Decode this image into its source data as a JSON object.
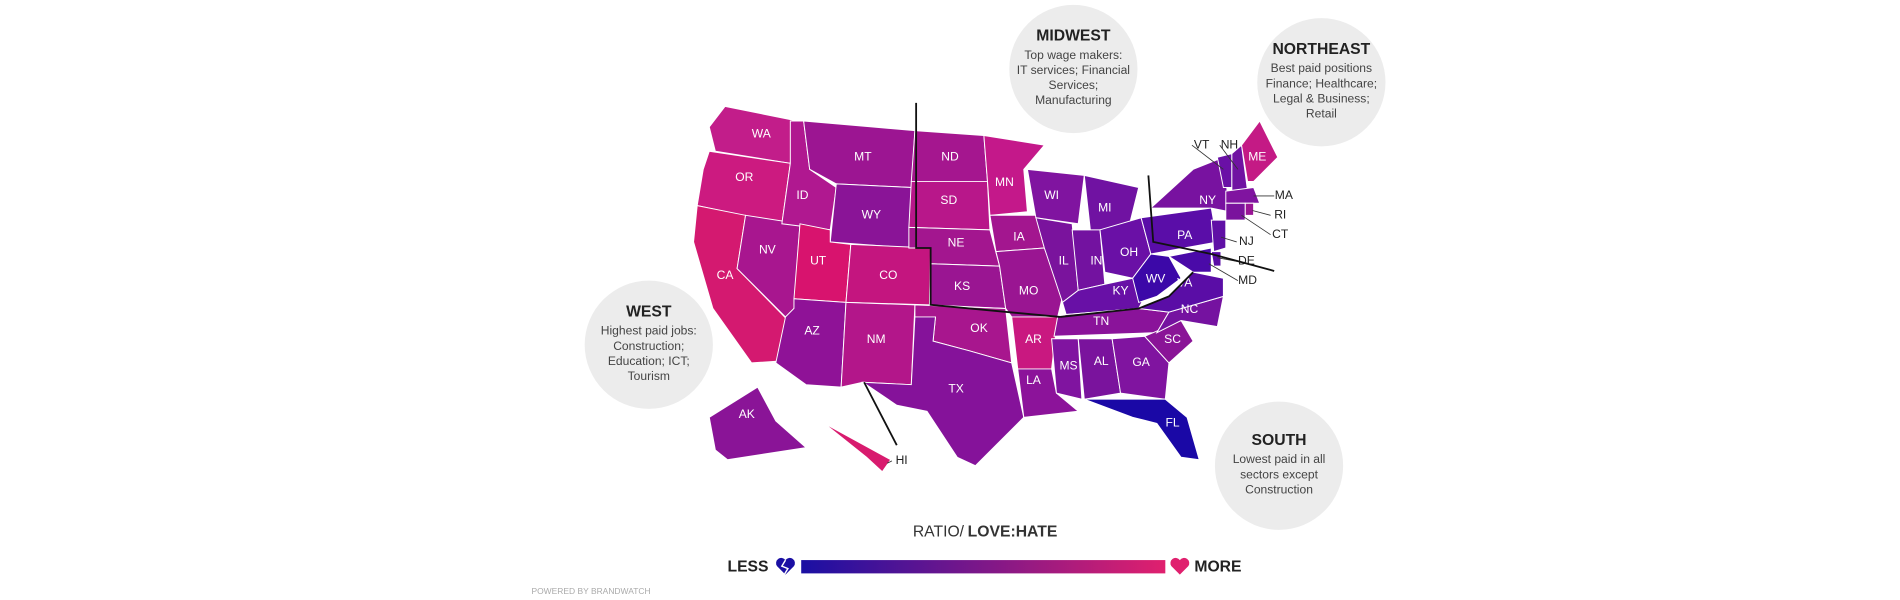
{
  "map": {
    "states": [
      {
        "label": "WA",
        "color": "#c21d8a"
      },
      {
        "label": "OR",
        "color": "#cc1a80"
      },
      {
        "label": "CA",
        "color": "#d41970"
      },
      {
        "label": "NV",
        "color": "#a8168f"
      },
      {
        "label": "ID",
        "color": "#b01890"
      },
      {
        "label": "MT",
        "color": "#9c1592"
      },
      {
        "label": "WY",
        "color": "#8a1497"
      },
      {
        "label": "UT",
        "color": "#d8136e"
      },
      {
        "label": "CO",
        "color": "#c4157f"
      },
      {
        "label": "AZ",
        "color": "#8f1297"
      },
      {
        "label": "NM",
        "color": "#b3168a"
      },
      {
        "label": "ND",
        "color": "#a5168f"
      },
      {
        "label": "SD",
        "color": "#b8178a"
      },
      {
        "label": "NE",
        "color": "#a3168f"
      },
      {
        "label": "KS",
        "color": "#9a1592"
      },
      {
        "label": "OK",
        "color": "#a8168e"
      },
      {
        "label": "TX",
        "color": "#85129a"
      },
      {
        "label": "MN",
        "color": "#c4188a"
      },
      {
        "label": "IA",
        "color": "#a3168f"
      },
      {
        "label": "MO",
        "color": "#9a1592"
      },
      {
        "label": "AR",
        "color": "#c91880"
      },
      {
        "label": "LA",
        "color": "#8c139a"
      },
      {
        "label": "WI",
        "color": "#8014a0"
      },
      {
        "label": "IL",
        "color": "#7a139d"
      },
      {
        "label": "MI",
        "color": "#7012a2"
      },
      {
        "label": "IN",
        "color": "#7312a0"
      },
      {
        "label": "OH",
        "color": "#6a10a6"
      },
      {
        "label": "KY",
        "color": "#6810a6"
      },
      {
        "label": "TN",
        "color": "#8a139a"
      },
      {
        "label": "MS",
        "color": "#8014a0"
      },
      {
        "label": "AL",
        "color": "#7a139d"
      },
      {
        "label": "GA",
        "color": "#8014a0"
      },
      {
        "label": "FL",
        "color": "#1a08a6"
      },
      {
        "label": "SC",
        "color": "#8a1497"
      },
      {
        "label": "NC",
        "color": "#7512a0"
      },
      {
        "label": "VA",
        "color": "#5a0da6"
      },
      {
        "label": "WV",
        "color": "#3c08a8"
      },
      {
        "label": "PA",
        "color": "#5a0da8"
      },
      {
        "label": "NY",
        "color": "#7812a0"
      },
      {
        "label": "VT",
        "color": "#6a10a6"
      },
      {
        "label": "NH",
        "color": "#7012a2"
      },
      {
        "label": "ME",
        "color": "#c41a85"
      },
      {
        "label": "MA",
        "color": "#8014a0"
      },
      {
        "label": "RI",
        "color": "#9a1595"
      },
      {
        "label": "CT",
        "color": "#7a139d"
      },
      {
        "label": "NJ",
        "color": "#6010a6"
      },
      {
        "label": "DE",
        "color": "#5a0da6"
      },
      {
        "label": "MD",
        "color": "#4a0aa8"
      },
      {
        "label": "AK",
        "color": "#8a1497"
      },
      {
        "label": "HI",
        "color": "#d81b6e"
      }
    ],
    "regions": [
      {
        "title": "MIDWEST",
        "lines": [
          "Top wage makers:",
          "IT services; Financial",
          "Services;",
          "Manufacturing"
        ]
      },
      {
        "title": "NORTHEAST",
        "lines": [
          "Best paid positions",
          "Finance; Healthcare;",
          "Legal & Business;",
          "Retail"
        ]
      },
      {
        "title": "WEST",
        "lines": [
          "Highest paid jobs:",
          "Construction;",
          "Education; ICT;",
          "Tourism"
        ]
      },
      {
        "title": "SOUTH",
        "lines": [
          "Lowest paid in all",
          "sectors except",
          "Construction"
        ]
      }
    ],
    "legend": {
      "prefix": "RATIO/",
      "emphasis": "LOVE:HATE",
      "less": "LESS",
      "more": "MORE",
      "less_color": "#1a0fa3",
      "more_color": "#e0206e"
    },
    "credit": "POWERED BY BRANDWATCH"
  }
}
